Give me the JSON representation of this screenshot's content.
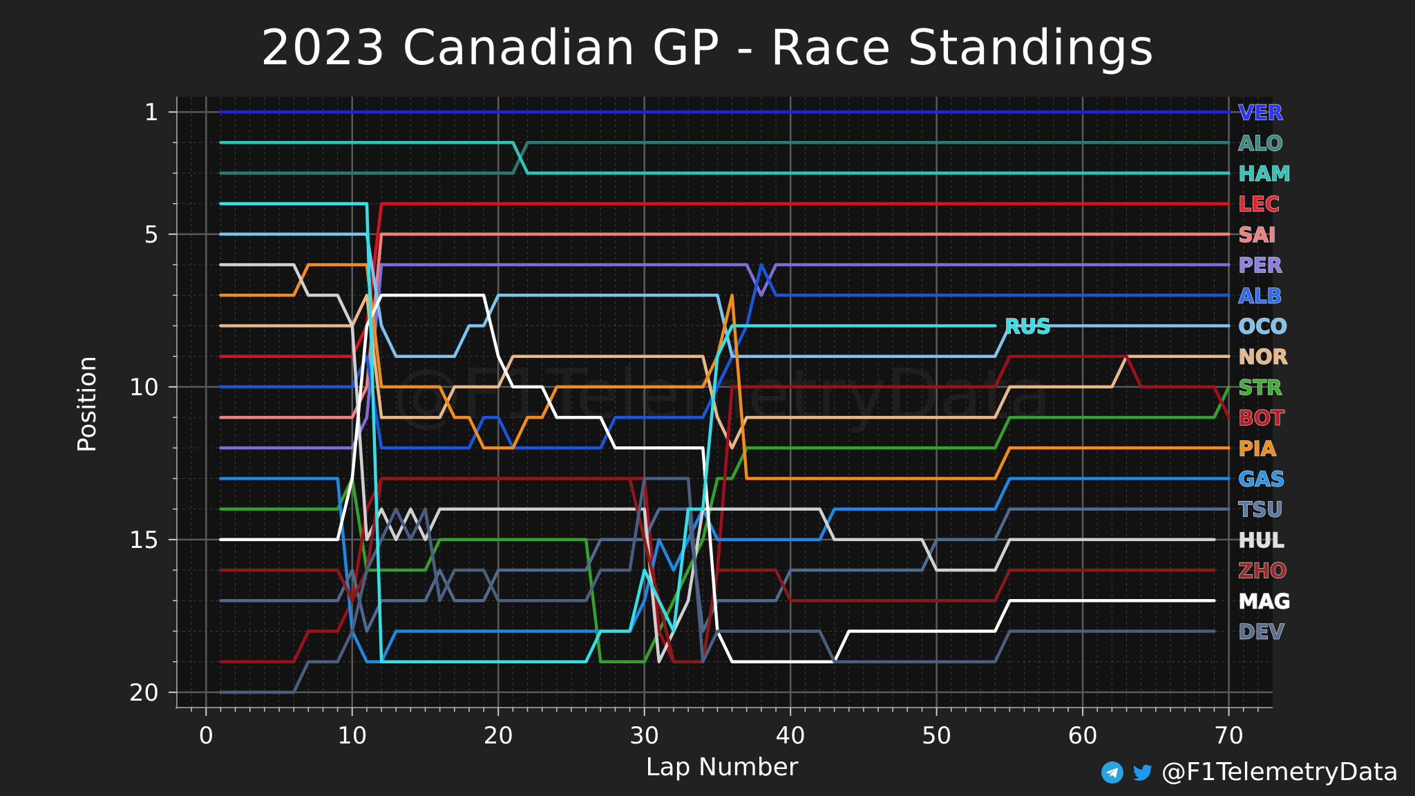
{
  "chart_data": {
    "type": "line",
    "title": "2023 Canadian GP - Race Standings",
    "xlabel": "Lap Number",
    "ylabel": "Position",
    "xlim": [
      -2,
      73
    ],
    "ylim": [
      20.5,
      0.5
    ],
    "x_ticks": [
      0,
      10,
      20,
      30,
      40,
      50,
      60,
      70
    ],
    "y_ticks": [
      1,
      5,
      10,
      15,
      20
    ],
    "grid": true,
    "background": "#121212",
    "series": [
      {
        "name": "VER",
        "color": "#1e22e6",
        "points": [
          [
            1,
            1
          ],
          [
            70,
            1
          ]
        ]
      },
      {
        "name": "ALO",
        "color": "#2a7a72",
        "points": [
          [
            1,
            3
          ],
          [
            21,
            3
          ],
          [
            22,
            2
          ],
          [
            70,
            2
          ]
        ]
      },
      {
        "name": "HAM",
        "color": "#2ec4b6",
        "points": [
          [
            1,
            2
          ],
          [
            21,
            2
          ],
          [
            22,
            3
          ],
          [
            70,
            3
          ]
        ]
      },
      {
        "name": "LEC",
        "color": "#d9111b",
        "points": [
          [
            1,
            9
          ],
          [
            10,
            9
          ],
          [
            11,
            8
          ],
          [
            12,
            4
          ],
          [
            70,
            4
          ]
        ]
      },
      {
        "name": "SAI",
        "color": "#f08080",
        "points": [
          [
            1,
            11
          ],
          [
            10,
            11
          ],
          [
            11,
            10
          ],
          [
            12,
            5
          ],
          [
            70,
            5
          ]
        ]
      },
      {
        "name": "PER",
        "color": "#7b6fd6",
        "points": [
          [
            1,
            12
          ],
          [
            10,
            12
          ],
          [
            11,
            11
          ],
          [
            12,
            6
          ],
          [
            37,
            6
          ],
          [
            38,
            7
          ],
          [
            39,
            6
          ],
          [
            70,
            6
          ]
        ]
      },
      {
        "name": "ALB",
        "color": "#1a56db",
        "points": [
          [
            1,
            10
          ],
          [
            10,
            10
          ],
          [
            11,
            9
          ],
          [
            12,
            12
          ],
          [
            18,
            12
          ],
          [
            19,
            11
          ],
          [
            20,
            11
          ],
          [
            21,
            12
          ],
          [
            27,
            12
          ],
          [
            28,
            11
          ],
          [
            34,
            11
          ],
          [
            35,
            10
          ],
          [
            36,
            9
          ],
          [
            37,
            8
          ],
          [
            38,
            6
          ],
          [
            39,
            7
          ],
          [
            70,
            7
          ]
        ]
      },
      {
        "name": "OCO",
        "color": "#7cc4ef",
        "points": [
          [
            1,
            5
          ],
          [
            11,
            5
          ],
          [
            12,
            8
          ],
          [
            13,
            9
          ],
          [
            17,
            9
          ],
          [
            18,
            8
          ],
          [
            19,
            8
          ],
          [
            20,
            7
          ],
          [
            35,
            7
          ],
          [
            36,
            9
          ],
          [
            54,
            9
          ],
          [
            55,
            8
          ],
          [
            70,
            8
          ]
        ]
      },
      {
        "name": "NOR",
        "color": "#eab786",
        "points": [
          [
            1,
            8
          ],
          [
            10,
            8
          ],
          [
            11,
            7
          ],
          [
            12,
            11
          ],
          [
            16,
            11
          ],
          [
            17,
            10
          ],
          [
            20,
            10
          ],
          [
            21,
            9
          ],
          [
            34,
            9
          ],
          [
            35,
            11
          ],
          [
            36,
            12
          ],
          [
            37,
            11
          ],
          [
            54,
            11
          ],
          [
            55,
            10
          ],
          [
            62,
            10
          ],
          [
            63,
            9
          ],
          [
            70,
            9
          ]
        ]
      },
      {
        "name": "STR",
        "color": "#35a02c",
        "points": [
          [
            1,
            14
          ],
          [
            9,
            14
          ],
          [
            10,
            13
          ],
          [
            11,
            16
          ],
          [
            15,
            16
          ],
          [
            16,
            15
          ],
          [
            26,
            15
          ],
          [
            27,
            19
          ],
          [
            30,
            19
          ],
          [
            31,
            18
          ],
          [
            32,
            17
          ],
          [
            33,
            16
          ],
          [
            34,
            15
          ],
          [
            35,
            13
          ],
          [
            36,
            13
          ],
          [
            37,
            12
          ],
          [
            54,
            12
          ],
          [
            55,
            11
          ],
          [
            69,
            11
          ],
          [
            70,
            10
          ]
        ]
      },
      {
        "name": "BOT",
        "color": "#a0101a",
        "points": [
          [
            1,
            19
          ],
          [
            6,
            19
          ],
          [
            7,
            18
          ],
          [
            9,
            18
          ],
          [
            10,
            17
          ],
          [
            11,
            14
          ],
          [
            12,
            13
          ],
          [
            29,
            13
          ],
          [
            30,
            13
          ],
          [
            31,
            18
          ],
          [
            32,
            19
          ],
          [
            34,
            19
          ],
          [
            35,
            16
          ],
          [
            36,
            10
          ],
          [
            37,
            10
          ],
          [
            54,
            10
          ],
          [
            55,
            9
          ],
          [
            63,
            9
          ],
          [
            64,
            10
          ],
          [
            69,
            10
          ],
          [
            70,
            11
          ]
        ]
      },
      {
        "name": "PIA",
        "color": "#f28c1a",
        "points": [
          [
            1,
            7
          ],
          [
            6,
            7
          ],
          [
            7,
            6
          ],
          [
            11,
            6
          ],
          [
            12,
            10
          ],
          [
            16,
            10
          ],
          [
            17,
            11
          ],
          [
            18,
            11
          ],
          [
            19,
            12
          ],
          [
            21,
            12
          ],
          [
            22,
            11
          ],
          [
            23,
            11
          ],
          [
            24,
            10
          ],
          [
            34,
            10
          ],
          [
            35,
            9
          ],
          [
            36,
            7
          ],
          [
            37,
            13
          ],
          [
            54,
            13
          ],
          [
            55,
            12
          ],
          [
            70,
            12
          ]
        ]
      },
      {
        "name": "GAS",
        "color": "#1e88e5",
        "points": [
          [
            1,
            13
          ],
          [
            9,
            13
          ],
          [
            10,
            18
          ],
          [
            11,
            19
          ],
          [
            12,
            19
          ],
          [
            13,
            18
          ],
          [
            29,
            18
          ],
          [
            30,
            17
          ],
          [
            31,
            15
          ],
          [
            32,
            16
          ],
          [
            33,
            15
          ],
          [
            34,
            14
          ],
          [
            35,
            15
          ],
          [
            42,
            15
          ],
          [
            43,
            14
          ],
          [
            54,
            14
          ],
          [
            55,
            13
          ],
          [
            70,
            13
          ]
        ]
      },
      {
        "name": "TSU",
        "color": "#4e6a8f",
        "points": [
          [
            1,
            17
          ],
          [
            9,
            17
          ],
          [
            10,
            16
          ],
          [
            11,
            18
          ],
          [
            12,
            17
          ],
          [
            15,
            17
          ],
          [
            16,
            16
          ],
          [
            17,
            17
          ],
          [
            19,
            17
          ],
          [
            20,
            16
          ],
          [
            26,
            16
          ],
          [
            27,
            15
          ],
          [
            30,
            15
          ],
          [
            31,
            14
          ],
          [
            33,
            14
          ],
          [
            34,
            18
          ],
          [
            35,
            17
          ],
          [
            39,
            17
          ],
          [
            40,
            16
          ],
          [
            49,
            16
          ],
          [
            50,
            15
          ],
          [
            54,
            15
          ],
          [
            55,
            14
          ],
          [
            70,
            14
          ]
        ]
      },
      {
        "name": "HUL",
        "color": "#d0d0d0",
        "points": [
          [
            1,
            6
          ],
          [
            6,
            6
          ],
          [
            7,
            7
          ],
          [
            9,
            7
          ],
          [
            10,
            8
          ],
          [
            11,
            15
          ],
          [
            12,
            14
          ],
          [
            13,
            15
          ],
          [
            14,
            14
          ],
          [
            15,
            15
          ],
          [
            16,
            14
          ],
          [
            30,
            14
          ],
          [
            31,
            19
          ],
          [
            32,
            18
          ],
          [
            33,
            17
          ],
          [
            34,
            14
          ],
          [
            35,
            14
          ],
          [
            42,
            14
          ],
          [
            43,
            15
          ],
          [
            49,
            15
          ],
          [
            50,
            16
          ],
          [
            54,
            16
          ],
          [
            55,
            15
          ],
          [
            69,
            15
          ]
        ]
      },
      {
        "name": "ZHO",
        "color": "#8a1a1a",
        "points": [
          [
            1,
            16
          ],
          [
            9,
            16
          ],
          [
            10,
            17
          ],
          [
            11,
            16
          ],
          [
            12,
            13
          ],
          [
            29,
            13
          ],
          [
            30,
            15
          ],
          [
            31,
            17
          ],
          [
            32,
            19
          ],
          [
            34,
            19
          ],
          [
            35,
            16
          ],
          [
            39,
            16
          ],
          [
            40,
            17
          ],
          [
            54,
            17
          ],
          [
            55,
            16
          ],
          [
            69,
            16
          ]
        ]
      },
      {
        "name": "MAG",
        "color": "#ffffff",
        "points": [
          [
            1,
            15
          ],
          [
            9,
            15
          ],
          [
            10,
            13
          ],
          [
            11,
            8
          ],
          [
            12,
            7
          ],
          [
            19,
            7
          ],
          [
            20,
            9
          ],
          [
            21,
            10
          ],
          [
            23,
            10
          ],
          [
            24,
            11
          ],
          [
            27,
            11
          ],
          [
            28,
            12
          ],
          [
            34,
            12
          ],
          [
            35,
            18
          ],
          [
            36,
            19
          ],
          [
            43,
            19
          ],
          [
            44,
            18
          ],
          [
            54,
            18
          ],
          [
            55,
            17
          ],
          [
            69,
            17
          ]
        ]
      },
      {
        "name": "DEV",
        "color": "#4a5e80",
        "points": [
          [
            1,
            20
          ],
          [
            6,
            20
          ],
          [
            7,
            19
          ],
          [
            9,
            19
          ],
          [
            10,
            18
          ],
          [
            11,
            16
          ],
          [
            12,
            15
          ],
          [
            13,
            14
          ],
          [
            14,
            15
          ],
          [
            15,
            14
          ],
          [
            16,
            17
          ],
          [
            17,
            16
          ],
          [
            18,
            16
          ],
          [
            19,
            16
          ],
          [
            20,
            17
          ],
          [
            26,
            17
          ],
          [
            27,
            16
          ],
          [
            29,
            16
          ],
          [
            30,
            13
          ],
          [
            33,
            13
          ],
          [
            34,
            19
          ],
          [
            35,
            18
          ],
          [
            42,
            18
          ],
          [
            43,
            19
          ],
          [
            54,
            19
          ],
          [
            55,
            18
          ],
          [
            69,
            18
          ]
        ]
      },
      {
        "name": "RUS",
        "color": "#34e0e8",
        "points": [
          [
            1,
            4
          ],
          [
            11,
            4
          ],
          [
            12,
            19
          ],
          [
            26,
            19
          ],
          [
            27,
            18
          ],
          [
            29,
            18
          ],
          [
            30,
            16
          ],
          [
            31,
            17
          ],
          [
            32,
            18
          ],
          [
            33,
            14
          ],
          [
            34,
            14
          ],
          [
            35,
            9
          ],
          [
            36,
            8
          ],
          [
            54,
            8
          ]
        ]
      }
    ],
    "end_labels": [
      {
        "text": "VER",
        "color": "#2a34ff",
        "y": 1
      },
      {
        "text": "ALO",
        "color": "#3a8a80",
        "y": 2
      },
      {
        "text": "HAM",
        "color": "#2ec4b6",
        "y": 3
      },
      {
        "text": "LEC",
        "color": "#e8202a",
        "y": 4
      },
      {
        "text": "SAI",
        "color": "#f08080",
        "y": 5
      },
      {
        "text": "PER",
        "color": "#8a7fe6",
        "y": 6
      },
      {
        "text": "ALB",
        "color": "#2d6ef0",
        "y": 7
      },
      {
        "text": "OCO",
        "color": "#7cc4ef",
        "y": 8
      },
      {
        "text": "NOR",
        "color": "#eab786",
        "y": 9
      },
      {
        "text": "STR",
        "color": "#3fb033",
        "y": 10
      },
      {
        "text": "BOT",
        "color": "#c21a25",
        "y": 11
      },
      {
        "text": "PIA",
        "color": "#f28c1a",
        "y": 12
      },
      {
        "text": "GAS",
        "color": "#2a95f0",
        "y": 13
      },
      {
        "text": "TSU",
        "color": "#5a7aa3",
        "y": 14
      },
      {
        "text": "HUL",
        "color": "#e0e0e0",
        "y": 15
      },
      {
        "text": "ZHO",
        "color": "#9a2a2a",
        "y": 16
      },
      {
        "text": "MAG",
        "color": "#ffffff",
        "y": 17
      },
      {
        "text": "DEV",
        "color": "#5a6e90",
        "y": 18
      }
    ],
    "inline_labels": [
      {
        "text": "RUS",
        "color": "#34e0e8",
        "x": 54,
        "y": 8
      }
    ]
  },
  "watermark": "@F1TelemetryData",
  "credit": {
    "handle": "@F1TelemetryData",
    "icons": [
      "telegram-icon",
      "twitter-icon"
    ],
    "telegram_color": "#2aa3e0",
    "twitter_color": "#1d9bf0"
  }
}
